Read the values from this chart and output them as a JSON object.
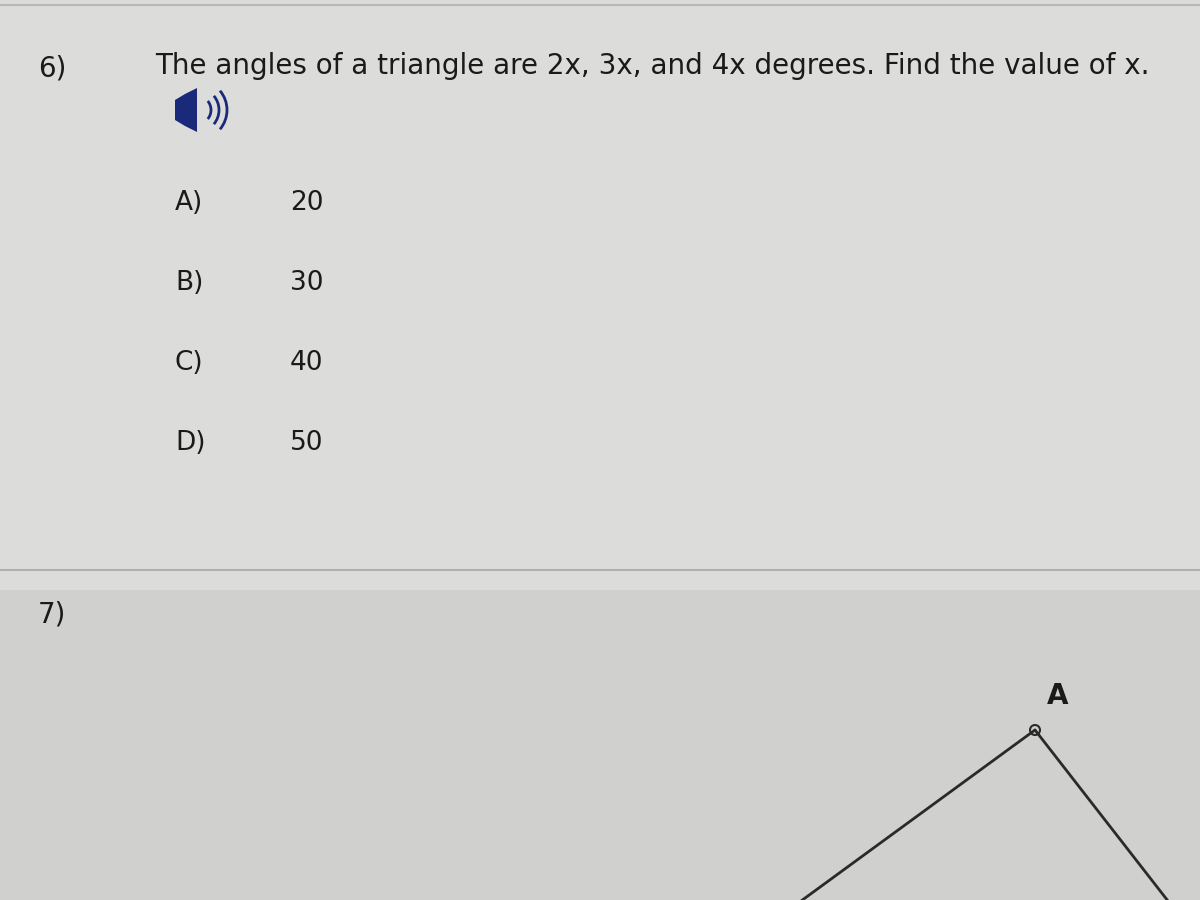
{
  "bg_color": "#d8d8d8",
  "top_section_color": "#e0e0dc",
  "bottom_section_color": "#d5d5d0",
  "question_num": "6)",
  "question_text": "The angles of a triangle are 2x, 3x, and 4x degrees. Find the value of x.",
  "choices": [
    {
      "label": "A)",
      "value": "20"
    },
    {
      "label": "B)",
      "value": "30"
    },
    {
      "label": "C)",
      "value": "40"
    },
    {
      "label": "D)",
      "value": "50"
    }
  ],
  "next_question_num": "7)",
  "text_color": "#1a1a1a",
  "font_size_question": 20,
  "font_size_choices": 19,
  "font_size_number": 20,
  "speaker_color": "#1a2a7a",
  "label_A": "A",
  "divider_color": "#b0b0b0"
}
